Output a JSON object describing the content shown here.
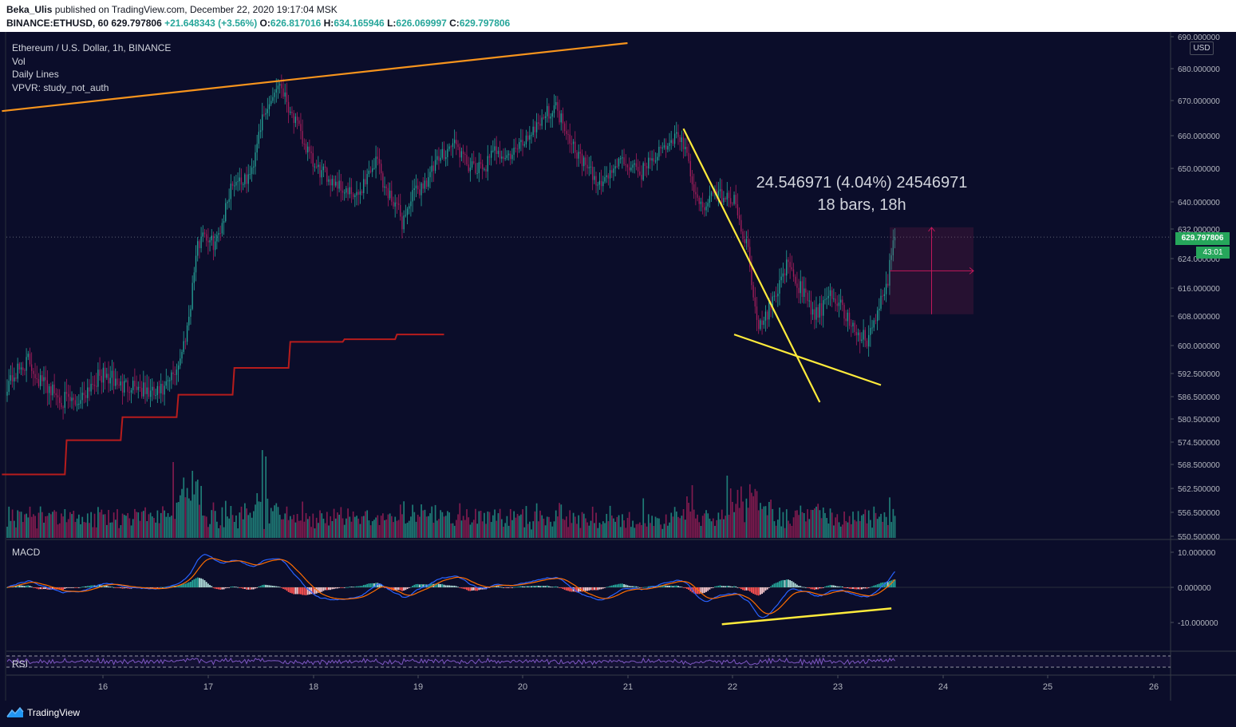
{
  "header": {
    "publisher": "Beka_Ulis",
    "published_text": "published on TradingView.com, December 22, 2020 19:17:04 MSK",
    "symbol": "BINANCE:ETHUSD, 60",
    "last": "629.797806",
    "change": "+21.648343 (+3.56%)",
    "o_label": "O:",
    "o_value": "626.817016",
    "h_label": "H:",
    "h_value": "634.165946",
    "l_label": "L:",
    "l_value": "626.069997",
    "c_label": "C:",
    "c_value": "629.797806"
  },
  "legend": {
    "title": "Ethereum / U.S. Dollar, 1h, BINANCE",
    "vol": "Vol",
    "daily_lines": "Daily Lines",
    "vpvr": "VPVR: study_not_auth"
  },
  "macd_label": "MACD",
  "rsi_label": "RSI",
  "currency": "USD",
  "price_badge": "629.797806",
  "time_badge": "43:01",
  "measure": {
    "line1": "24.546971 (4.04%) 24546971",
    "line2": "18 bars, 18h"
  },
  "footer": {
    "brand": "TradingView",
    "logo": "tradingview-logo-icon"
  },
  "colors": {
    "background": "#0b0d2a",
    "up": "#26a69a",
    "down": "#a61e5d",
    "trendline": "#f7941d",
    "daily_line": "#b71c1c",
    "annotation": "#ffeb3b",
    "macd": "#2962ff",
    "signal": "#ff6d00",
    "rsi": "#7e57c2"
  },
  "chart_data": {
    "type": "candlestick",
    "x_ticks": [
      "16",
      "17",
      "18",
      "19",
      "20",
      "21",
      "22",
      "23",
      "24",
      "25",
      "26"
    ],
    "price_axis": {
      "ticks": [
        "690.000000",
        "680.000000",
        "670.000000",
        "660.000000",
        "650.000000",
        "640.000000",
        "632.000000",
        "624.000000",
        "616.000000",
        "608.000000",
        "600.000000",
        "592.500000",
        "586.500000",
        "580.500000",
        "574.500000",
        "568.500000",
        "562.500000",
        "556.500000",
        "550.500000"
      ],
      "ylim": [
        550.5,
        692
      ],
      "last_price": 629.797806
    },
    "macd_axis": {
      "ticks": [
        "10.000000",
        "0.000000",
        "-10.000000"
      ],
      "ylim": [
        -18,
        14
      ]
    },
    "close_series": [
      [
        0,
        590
      ],
      [
        6,
        593
      ],
      [
        12,
        596
      ],
      [
        18,
        591
      ],
      [
        24,
        589
      ],
      [
        30,
        586
      ],
      [
        36,
        585
      ],
      [
        40,
        585
      ],
      [
        48,
        590
      ],
      [
        54,
        592
      ],
      [
        60,
        591
      ],
      [
        66,
        589
      ],
      [
        72,
        590
      ],
      [
        78,
        588
      ],
      [
        84,
        587
      ],
      [
        90,
        588
      ],
      [
        96,
        593
      ],
      [
        100,
        598
      ],
      [
        104,
        608
      ],
      [
        108,
        625
      ],
      [
        112,
        632
      ],
      [
        116,
        628
      ],
      [
        120,
        629
      ],
      [
        124,
        636
      ],
      [
        128,
        645
      ],
      [
        132,
        647
      ],
      [
        136,
        646
      ],
      [
        140,
        649
      ],
      [
        144,
        662
      ],
      [
        148,
        666
      ],
      [
        152,
        672
      ],
      [
        156,
        676
      ],
      [
        160,
        670
      ],
      [
        164,
        665
      ],
      [
        168,
        660
      ],
      [
        172,
        655
      ],
      [
        176,
        650
      ],
      [
        182,
        648
      ],
      [
        188,
        646
      ],
      [
        194,
        643
      ],
      [
        200,
        641
      ],
      [
        206,
        648
      ],
      [
        212,
        653
      ],
      [
        216,
        644
      ],
      [
        222,
        640
      ],
      [
        226,
        634
      ],
      [
        232,
        642
      ],
      [
        238,
        645
      ],
      [
        244,
        650
      ],
      [
        250,
        655
      ],
      [
        256,
        658
      ],
      [
        262,
        652
      ],
      [
        268,
        649
      ],
      [
        274,
        651
      ],
      [
        280,
        656
      ],
      [
        286,
        653
      ],
      [
        292,
        656
      ],
      [
        298,
        660
      ],
      [
        304,
        664
      ],
      [
        310,
        667
      ],
      [
        314,
        668
      ],
      [
        320,
        662
      ],
      [
        326,
        655
      ],
      [
        332,
        650
      ],
      [
        338,
        645
      ],
      [
        344,
        648
      ],
      [
        350,
        652
      ],
      [
        356,
        651
      ],
      [
        362,
        648
      ],
      [
        368,
        653
      ],
      [
        374,
        655
      ],
      [
        380,
        658
      ],
      [
        384,
        661
      ],
      [
        388,
        655
      ],
      [
        392,
        646
      ],
      [
        396,
        638
      ],
      [
        400,
        640
      ],
      [
        406,
        643
      ],
      [
        412,
        641
      ],
      [
        416,
        640
      ],
      [
        420,
        633
      ],
      [
        424,
        626
      ],
      [
        428,
        612
      ],
      [
        430,
        604
      ],
      [
        434,
        608
      ],
      [
        438,
        612
      ],
      [
        442,
        618
      ],
      [
        446,
        622
      ],
      [
        450,
        619
      ],
      [
        456,
        614
      ],
      [
        462,
        608
      ],
      [
        468,
        611
      ],
      [
        472,
        614
      ],
      [
        476,
        612
      ],
      [
        480,
        608
      ],
      [
        484,
        605
      ],
      [
        488,
        603
      ],
      [
        492,
        601
      ],
      [
        496,
        606
      ],
      [
        500,
        612
      ],
      [
        504,
        617
      ],
      [
        506,
        626
      ],
      [
        508,
        630
      ]
    ],
    "daily_lines": [
      [
        -3,
        566
      ],
      [
        33,
        566
      ],
      [
        34,
        575
      ],
      [
        65,
        575
      ],
      [
        66,
        581
      ],
      [
        97,
        581
      ],
      [
        98,
        587
      ],
      [
        129,
        587
      ],
      [
        130,
        594
      ],
      [
        161,
        594
      ],
      [
        162,
        601
      ],
      [
        192,
        601
      ],
      [
        193,
        601.7
      ],
      [
        222,
        601.7
      ],
      [
        223,
        603
      ],
      [
        250,
        603
      ]
    ],
    "trendlines": [
      {
        "name": "upper-channel",
        "from": [
          -3,
          667
        ],
        "to": [
          355,
          688
        ]
      },
      {
        "name": "wedge-top",
        "from": [
          387,
          662
        ],
        "to": [
          465,
          585
        ]
      },
      {
        "name": "wedge-bottom",
        "from": [
          416,
          603
        ],
        "to": [
          500,
          589.5
        ]
      }
    ],
    "measure_box": {
      "from": [
        505,
        608.5
      ],
      "to": [
        553,
        632.5
      ]
    },
    "macd_annotation": {
      "from": [
        409,
        -10.5
      ],
      "to": [
        506,
        -6
      ]
    }
  }
}
